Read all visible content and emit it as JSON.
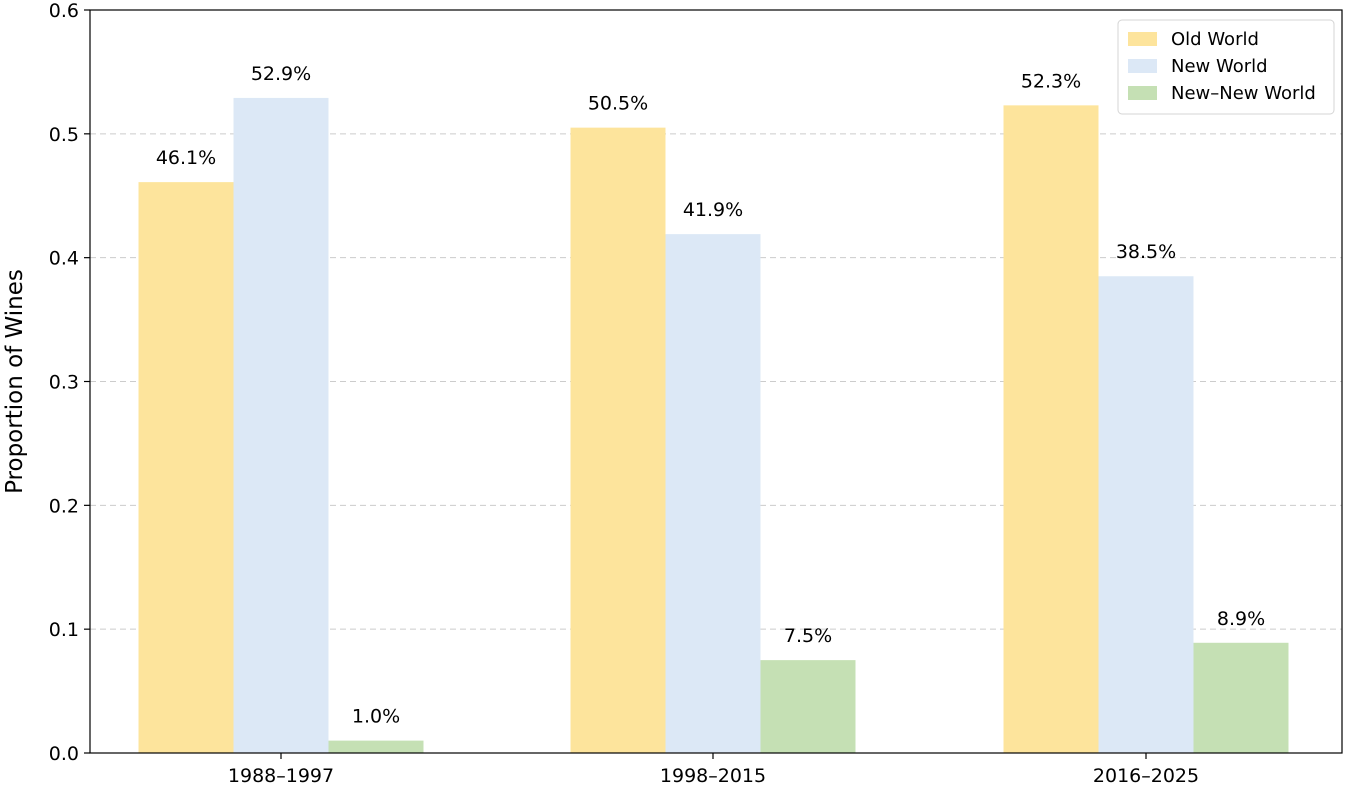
{
  "chart_data": {
    "type": "bar",
    "categories": [
      "1988–1997",
      "1998–2015",
      "2016–2025"
    ],
    "series": [
      {
        "name": "Old World",
        "values": [
          0.461,
          0.505,
          0.523
        ],
        "labels": [
          "46.1%",
          "50.5%",
          "52.3%"
        ],
        "color": "#FDE49C"
      },
      {
        "name": "New World",
        "values": [
          0.529,
          0.419,
          0.385
        ],
        "labels": [
          "52.9%",
          "41.9%",
          "38.5%"
        ],
        "color": "#DCE8F6"
      },
      {
        "name": "New–New World",
        "values": [
          0.01,
          0.075,
          0.089
        ],
        "labels": [
          "1.0%",
          "7.5%",
          "8.9%"
        ],
        "color": "#C5E0B4"
      }
    ],
    "title": "",
    "xlabel": "",
    "ylabel": "Proportion of Wines",
    "ylim": [
      0,
      0.6
    ],
    "yticks": [
      0.0,
      0.1,
      0.2,
      0.3,
      0.4,
      0.5,
      0.6
    ],
    "ytick_labels": [
      "0.0",
      "0.1",
      "0.2",
      "0.3",
      "0.4",
      "0.5",
      "0.6"
    ],
    "grid": "horizontal-dashed",
    "legend_position": "top-right"
  }
}
